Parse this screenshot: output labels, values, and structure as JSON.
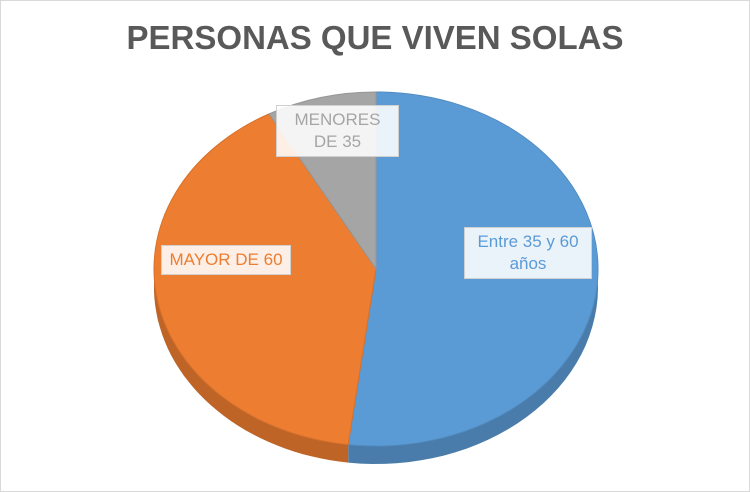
{
  "chart_data": {
    "type": "pie",
    "title": "PERSONAS QUE VIVEN SOLAS",
    "categories": [
      "Entre 35 y 60 años",
      "MAYOR DE 60",
      "MENORES DE 35"
    ],
    "values": [
      52,
      40,
      8
    ],
    "colors": [
      "#5b9bd5",
      "#ed7d31",
      "#a5a5a5"
    ]
  }
}
